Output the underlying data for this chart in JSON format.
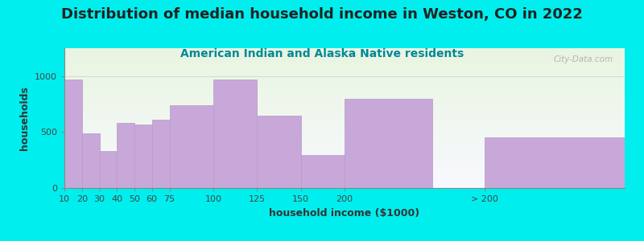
{
  "title": "Distribution of median household income in Weston, CO in 2022",
  "subtitle": "American Indian and Alaska Native residents",
  "xlabel": "household income ($1000)",
  "ylabel": "households",
  "background_color": "#00EEEE",
  "plot_bg_top": "#e8f5e0",
  "plot_bg_bottom": "#f8f8ff",
  "bar_color": "#C8A8D8",
  "bar_edge_color": "#B898C8",
  "bar_labels": [
    "10",
    "20",
    "30",
    "40",
    "50",
    "60",
    "75",
    "100",
    "125",
    "150",
    "200",
    "> 200"
  ],
  "bar_values": [
    970,
    490,
    330,
    580,
    565,
    610,
    740,
    970,
    650,
    295,
    800,
    450
  ],
  "bar_widths": [
    10,
    10,
    10,
    10,
    10,
    15,
    25,
    25,
    25,
    25,
    50,
    80
  ],
  "bar_lefts": [
    5,
    15,
    25,
    35,
    45,
    55,
    65,
    90,
    115,
    140,
    165,
    245
  ],
  "xlim": [
    5,
    325
  ],
  "ylim": [
    0,
    1250
  ],
  "yticks": [
    0,
    500,
    1000
  ],
  "title_fontsize": 13,
  "subtitle_fontsize": 10,
  "axis_label_fontsize": 9,
  "tick_fontsize": 8,
  "title_color": "#222222",
  "subtitle_color": "#008899",
  "watermark_text": "City-Data.com"
}
